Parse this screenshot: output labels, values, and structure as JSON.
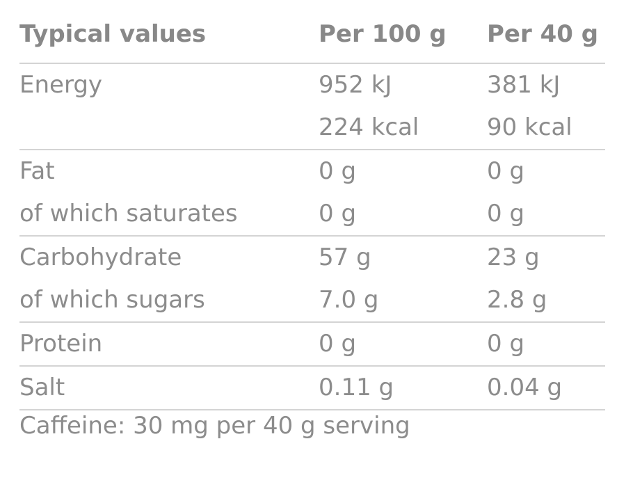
{
  "table": {
    "headers": [
      "Typical values",
      "Per 100 g",
      "Per 40 g"
    ],
    "groups": [
      {
        "rows": [
          [
            "Energy",
            "952 kJ",
            "381 kJ"
          ],
          [
            "",
            "224 kcal",
            "90 kcal"
          ]
        ]
      },
      {
        "rows": [
          [
            "Fat",
            "0 g",
            "0 g"
          ],
          [
            "of which saturates",
            "0 g",
            "0 g"
          ]
        ]
      },
      {
        "rows": [
          [
            "Carbohydrate",
            "57 g",
            "23 g"
          ],
          [
            "of which sugars",
            "7.0 g",
            "2.8 g"
          ]
        ]
      },
      {
        "rows": [
          [
            "Protein",
            "0 g",
            "0 g"
          ]
        ]
      },
      {
        "rows": [
          [
            "Salt",
            "0.11 g",
            "0.04 g"
          ]
        ]
      }
    ]
  },
  "footnote": "Caffeine: 30 mg per 40 g serving"
}
